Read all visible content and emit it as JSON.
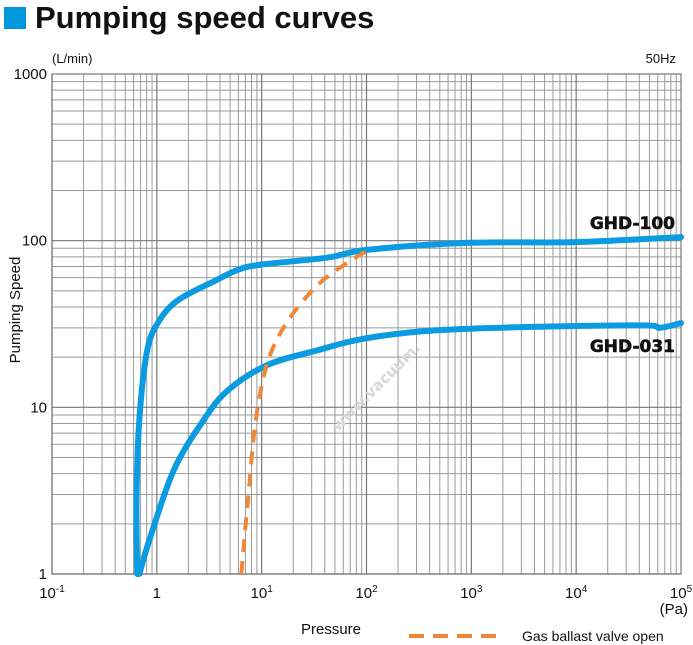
{
  "header": {
    "title": "Pumping speed curves",
    "accent_color": "#0098dc"
  },
  "watermark": "www.vacuum.",
  "chart_data": {
    "type": "line",
    "title": "Pumping speed curves",
    "xlabel": "Pressure",
    "ylabel": "Pumping Speed",
    "x_unit": "(Pa)",
    "y_unit": "(L/min)",
    "frequency_note": "50Hz",
    "x_scale": "log",
    "y_scale": "log",
    "xlim": [
      0.1,
      100000
    ],
    "ylim": [
      1,
      1000
    ],
    "grid": true,
    "x_ticks": [
      {
        "value": 0.1,
        "base": "10",
        "exp": "-1"
      },
      {
        "value": 1,
        "base": "1",
        "exp": ""
      },
      {
        "value": 10,
        "base": "10",
        "exp": "1"
      },
      {
        "value": 100,
        "base": "10",
        "exp": "2"
      },
      {
        "value": 1000,
        "base": "10",
        "exp": "3"
      },
      {
        "value": 10000,
        "base": "10",
        "exp": "4"
      },
      {
        "value": 100000,
        "base": "10",
        "exp": "5"
      }
    ],
    "y_ticks": [
      {
        "value": 1,
        "label": "1"
      },
      {
        "value": 10,
        "label": "10"
      },
      {
        "value": 100,
        "label": "100"
      },
      {
        "value": 1000,
        "label": "1000"
      }
    ],
    "series": [
      {
        "name": "GHD-100",
        "color": "#0b9be0",
        "style": "solid",
        "x": [
          0.65,
          0.64,
          0.68,
          0.81,
          1.05,
          1.6,
          3.5,
          6,
          10.2,
          42,
          100,
          900,
          9800,
          100000
        ],
        "y": [
          1,
          2.8,
          8.4,
          22,
          33,
          44,
          57,
          67,
          72,
          79,
          88,
          97,
          98,
          105
        ]
      },
      {
        "name": "GHD-031",
        "color": "#0b9be0",
        "style": "solid",
        "x": [
          0.68,
          0.85,
          1.45,
          2.8,
          4.8,
          11.5,
          34,
          100,
          470,
          5000,
          45000,
          63000,
          100000
        ],
        "y": [
          1,
          1.6,
          4.2,
          8.4,
          12.7,
          18,
          22,
          26,
          29,
          30.5,
          31,
          30,
          32
        ]
      },
      {
        "name": "Gas ballast valve open",
        "color": "#f0883a",
        "style": "dashed",
        "x": [
          6.4,
          7.4,
          8.8,
          11.5,
          17.8,
          34,
          66,
          106
        ],
        "y": [
          1,
          2.8,
          8.4,
          19,
          33,
          54,
          74,
          88
        ]
      }
    ],
    "legend": {
      "position": "bottom-right",
      "entries": [
        "Gas ballast valve open"
      ]
    }
  }
}
